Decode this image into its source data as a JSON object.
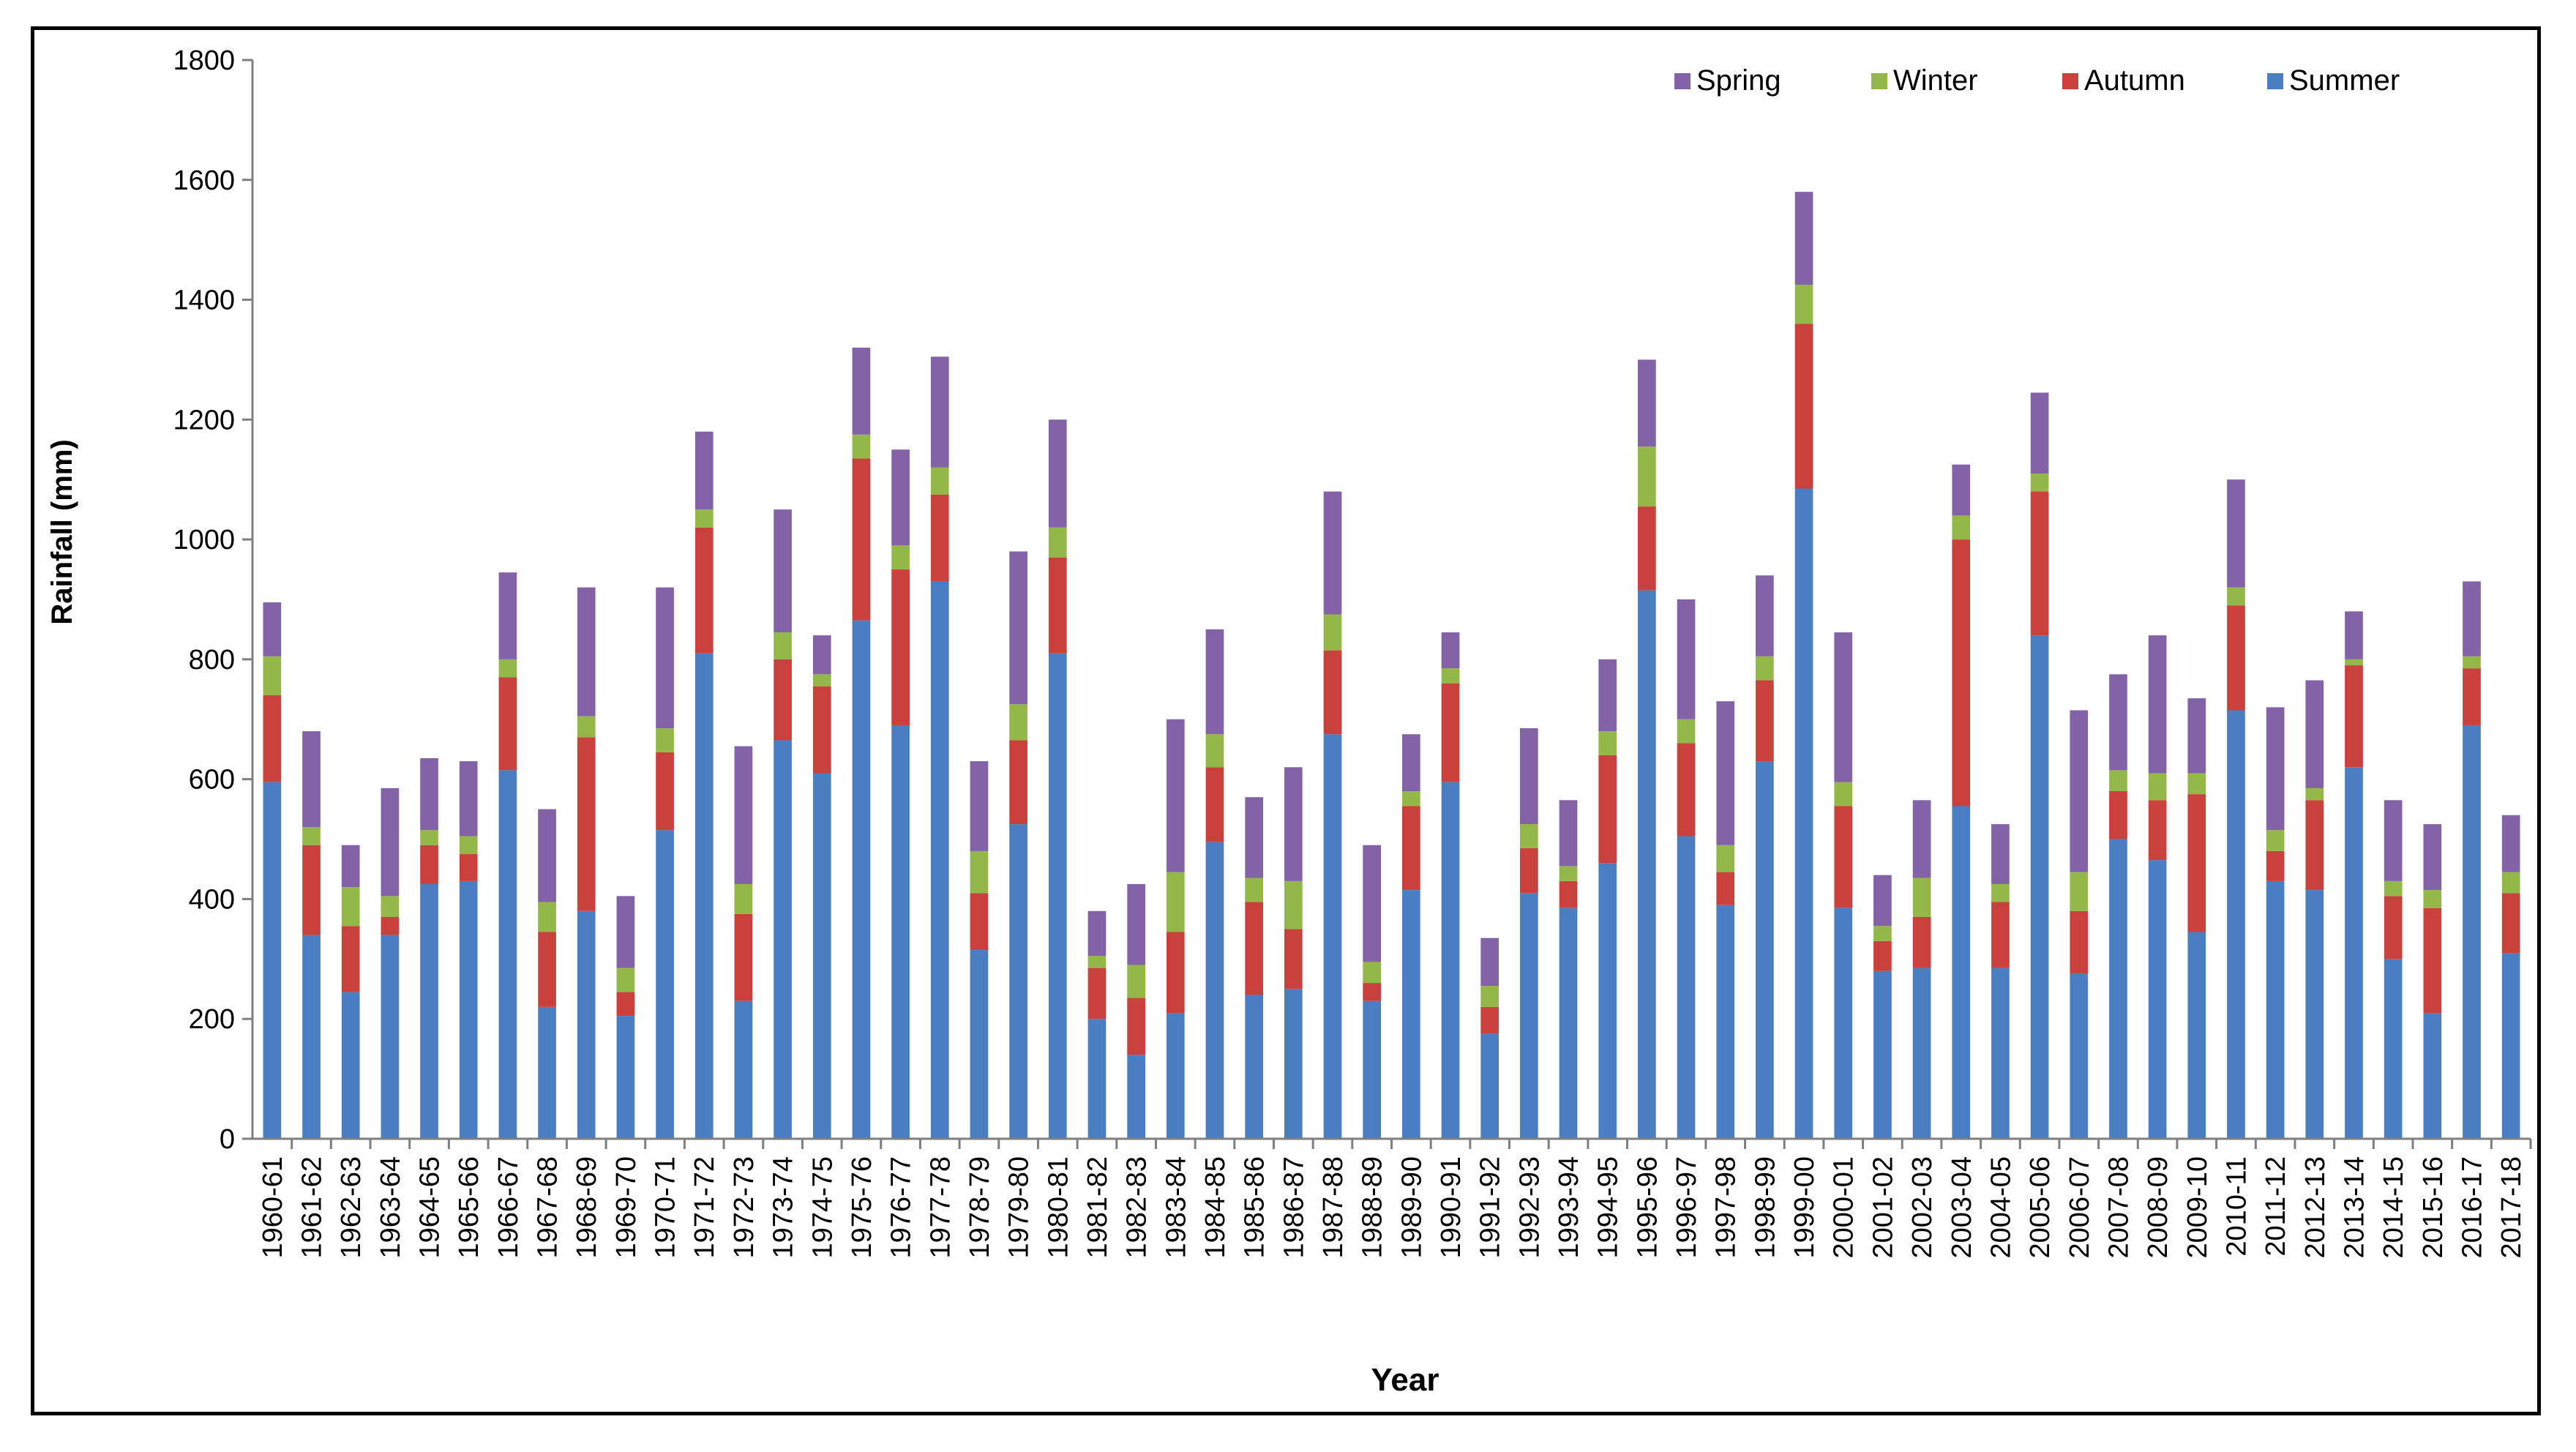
{
  "chart_data": {
    "type": "bar",
    "stacked": true,
    "title": "",
    "xlabel": "Year",
    "ylabel": "Rainfall (mm)",
    "ylim": [
      0,
      1800
    ],
    "yticks": [
      0,
      200,
      400,
      600,
      800,
      1000,
      1200,
      1400,
      1600,
      1800
    ],
    "grid": false,
    "legend_position": "top-right",
    "categories": [
      "1960-61",
      "1961-62",
      "1962-63",
      "1963-64",
      "1964-65",
      "1965-66",
      "1966-67",
      "1967-68",
      "1968-69",
      "1969-70",
      "1970-71",
      "1971-72",
      "1972-73",
      "1973-74",
      "1974-75",
      "1975-76",
      "1976-77",
      "1977-78",
      "1978-79",
      "1979-80",
      "1980-81",
      "1981-82",
      "1982-83",
      "1983-84",
      "1984-85",
      "1985-86",
      "1986-87",
      "1987-88",
      "1988-89",
      "1989-90",
      "1990-91",
      "1991-92",
      "1992-93",
      "1993-94",
      "1994-95",
      "1995-96",
      "1996-97",
      "1997-98",
      "1998-99",
      "1999-00",
      "2000-01",
      "2001-02",
      "2002-03",
      "2003-04",
      "2004-05",
      "2005-06",
      "2006-07",
      "2007-08",
      "2008-09",
      "2009-10",
      "2010-11",
      "2011-12",
      "2012-13",
      "2013-14",
      "2014-15",
      "2015-16",
      "2016-17",
      "2017-18"
    ],
    "series": [
      {
        "name": "Summer",
        "color": "#4a7ec2",
        "values": [
          595,
          340,
          245,
          340,
          425,
          430,
          615,
          220,
          380,
          205,
          515,
          810,
          230,
          665,
          610,
          865,
          690,
          930,
          315,
          525,
          810,
          200,
          140,
          210,
          495,
          240,
          250,
          675,
          230,
          415,
          595,
          175,
          410,
          385,
          460,
          915,
          505,
          390,
          630,
          1085,
          385,
          280,
          285,
          555,
          285,
          840,
          275,
          500,
          465,
          345,
          715,
          430,
          415,
          620,
          300,
          210,
          690,
          310
        ]
      },
      {
        "name": "Autumn",
        "color": "#c9403d",
        "values": [
          145,
          150,
          110,
          30,
          65,
          45,
          155,
          125,
          290,
          40,
          130,
          210,
          145,
          135,
          145,
          270,
          260,
          145,
          95,
          140,
          160,
          85,
          95,
          135,
          125,
          155,
          100,
          140,
          30,
          140,
          165,
          45,
          75,
          45,
          180,
          140,
          155,
          55,
          135,
          275,
          170,
          50,
          85,
          445,
          110,
          240,
          105,
          80,
          100,
          230,
          175,
          50,
          150,
          170,
          105,
          175,
          95,
          100
        ]
      },
      {
        "name": "Winter",
        "color": "#94b848",
        "values": [
          65,
          30,
          65,
          35,
          25,
          30,
          30,
          50,
          35,
          40,
          40,
          30,
          50,
          45,
          20,
          40,
          40,
          45,
          70,
          60,
          50,
          20,
          55,
          100,
          55,
          40,
          80,
          60,
          35,
          25,
          25,
          35,
          40,
          25,
          40,
          100,
          40,
          45,
          40,
          65,
          40,
          25,
          65,
          40,
          30,
          30,
          65,
          35,
          45,
          35,
          30,
          35,
          20,
          10,
          25,
          30,
          20,
          35
        ]
      },
      {
        "name": "Spring",
        "color": "#8462a8",
        "values": [
          90,
          160,
          70,
          180,
          120,
          125,
          145,
          155,
          215,
          120,
          235,
          130,
          230,
          205,
          65,
          145,
          160,
          185,
          150,
          255,
          180,
          75,
          135,
          255,
          175,
          135,
          190,
          205,
          195,
          95,
          60,
          80,
          160,
          110,
          120,
          145,
          200,
          240,
          135,
          155,
          250,
          85,
          130,
          85,
          100,
          135,
          270,
          160,
          230,
          125,
          180,
          205,
          180,
          80,
          135,
          110,
          125,
          95
        ]
      }
    ],
    "legend_order": [
      "Spring",
      "Winter",
      "Autumn",
      "Summer"
    ]
  }
}
